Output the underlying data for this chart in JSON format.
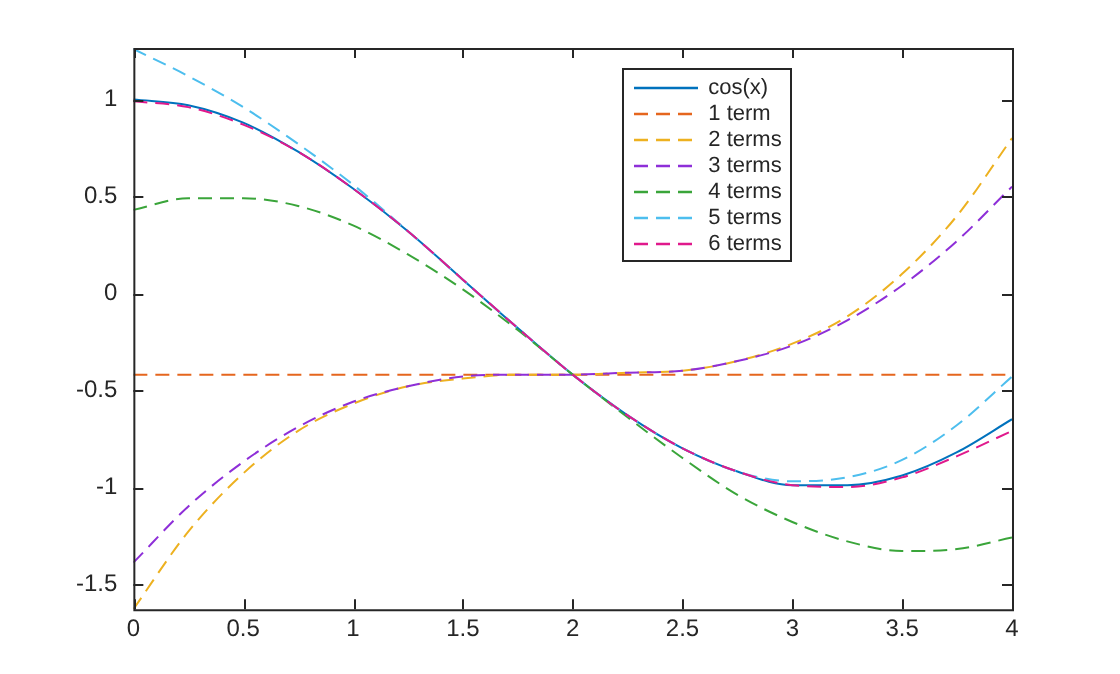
{
  "chart_data": {
    "type": "line",
    "x": [
      0,
      0.25,
      0.5,
      0.75,
      1,
      1.25,
      1.5,
      1.75,
      2,
      2.25,
      2.5,
      2.75,
      3,
      3.25,
      3.5,
      3.75,
      4
    ],
    "xlim": [
      0,
      4
    ],
    "xticks": [
      0,
      0.5,
      1,
      1.5,
      2,
      2.5,
      3,
      3.5,
      4
    ],
    "ylim": [
      -1.63,
      1.265
    ],
    "yticks": [
      -1.5,
      -1,
      -0.5,
      0,
      0.5,
      1
    ],
    "grid": false,
    "legend": "top right",
    "marker": "none",
    "series": [
      {
        "name": "cos(x)",
        "color": "#0072bd",
        "line_style": "solid",
        "values": [
          1,
          0.97,
          0.88,
          0.73,
          0.54,
          0.32,
          0.07,
          -0.18,
          -0.42,
          -0.63,
          -0.8,
          -0.92,
          -0.99,
          -0.99,
          -0.94,
          -0.82,
          -0.65
        ]
      },
      {
        "name": "1 term",
        "color": "#e5661e",
        "line_style": "dashed",
        "values": [
          -0.42,
          -0.42,
          -0.42,
          -0.42,
          -0.42,
          -0.42,
          -0.42,
          -0.42,
          -0.42,
          -0.42,
          -0.42,
          -0.42,
          -0.42,
          -0.42,
          -0.42,
          -0.42,
          -0.42
        ]
      },
      {
        "name": "2 terms",
        "color": "#edb120",
        "line_style": "dashed",
        "values": [
          -1.63,
          -1.23,
          -0.93,
          -0.71,
          -0.57,
          -0.48,
          -0.44,
          -0.42,
          -0.42,
          -0.41,
          -0.4,
          -0.35,
          -0.26,
          -0.12,
          0.1,
          0.4,
          0.8
        ]
      },
      {
        "name": "3 terms",
        "color": "#8e2fd8",
        "line_style": "dashed",
        "values": [
          -1.39,
          -1.1,
          -0.87,
          -0.69,
          -0.56,
          -0.48,
          -0.43,
          -0.42,
          -0.42,
          -0.41,
          -0.4,
          -0.35,
          -0.27,
          -0.14,
          0.04,
          0.27,
          0.55
        ]
      },
      {
        "name": "4 terms",
        "color": "#3aa53a",
        "line_style": "dashed",
        "values": [
          0.43,
          0.49,
          0.49,
          0.45,
          0.35,
          0.2,
          0.02,
          -0.19,
          -0.42,
          -0.64,
          -0.85,
          -1.04,
          -1.18,
          -1.28,
          -1.33,
          -1.32,
          -1.26
        ]
      },
      {
        "name": "5 terms",
        "color": "#4dbeee",
        "line_style": "dashed",
        "values": [
          1.26,
          1.12,
          0.96,
          0.77,
          0.56,
          0.32,
          0.07,
          -0.18,
          -0.42,
          -0.63,
          -0.8,
          -0.92,
          -0.97,
          -0.95,
          -0.86,
          -0.68,
          -0.43
        ]
      },
      {
        "name": "6 terms",
        "color": "#e0198c",
        "line_style": "dashed",
        "values": [
          0.99,
          0.96,
          0.87,
          0.73,
          0.54,
          0.32,
          0.07,
          -0.18,
          -0.42,
          -0.63,
          -0.8,
          -0.92,
          -0.99,
          -1,
          -0.95,
          -0.84,
          -0.71
        ]
      }
    ]
  }
}
